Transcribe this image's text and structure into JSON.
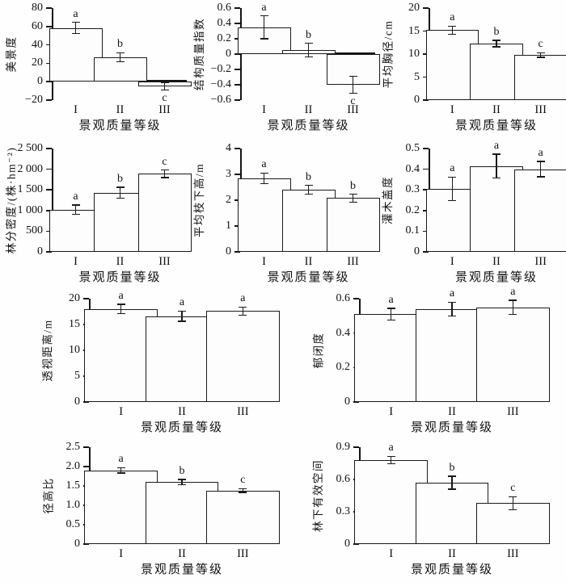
{
  "figure": {
    "background": "#fefefe",
    "axis_color": "#141414",
    "bar_fill": "#fdfdfd",
    "common_xlabel": "景观质量等级",
    "common_categories": [
      "I",
      "II",
      "III"
    ]
  },
  "chart_data": [
    {
      "type": "bar",
      "ylabel": "美景度",
      "xlabel": "景观质量等级",
      "categories": [
        "I",
        "II",
        "III"
      ],
      "values": [
        58.5,
        26.5,
        -5
      ],
      "errors": [
        6,
        5,
        4
      ],
      "sig_letters": [
        "a",
        "b",
        "c"
      ],
      "ylim": [
        -20,
        80
      ],
      "yticks": [
        -20,
        0,
        20,
        40,
        60,
        80
      ],
      "ytick_labels": [
        "−20",
        "0",
        "20",
        "40",
        "60",
        "80"
      ],
      "grid": false
    },
    {
      "type": "bar",
      "ylabel": "结构质量指数",
      "xlabel": "景观质量等级",
      "categories": [
        "I",
        "II",
        "III"
      ],
      "values": [
        0.35,
        0.05,
        -0.4
      ],
      "errors": [
        0.15,
        0.09,
        0.11
      ],
      "sig_letters": [
        "a",
        "b",
        "c"
      ],
      "ylim": [
        -0.6,
        0.6
      ],
      "yticks": [
        -0.6,
        -0.4,
        -0.2,
        0,
        0.2,
        0.4,
        0.6
      ],
      "ytick_labels": [
        "−0.6",
        "−0.4",
        "−0.2",
        "0",
        "0.2",
        "0.4",
        "0.6"
      ],
      "grid": false
    },
    {
      "type": "bar",
      "ylabel": "平均胸径/cm",
      "xlabel": "景观质量等级",
      "categories": [
        "I",
        "II",
        "III"
      ],
      "values": [
        15.2,
        12.3,
        9.8
      ],
      "errors": [
        0.9,
        0.7,
        0.5
      ],
      "sig_letters": [
        "a",
        "b",
        "c"
      ],
      "ylim": [
        0,
        20
      ],
      "yticks": [
        0,
        5,
        10,
        15,
        20
      ],
      "ytick_labels": [
        "0",
        "5",
        "10",
        "15",
        "20"
      ],
      "grid": false
    },
    {
      "type": "bar",
      "ylabel": "林分密度/(株·hm⁻²)",
      "xlabel": "景观质量等级",
      "categories": [
        "I",
        "II",
        "III"
      ],
      "values": [
        1020,
        1430,
        1890
      ],
      "errors": [
        110,
        130,
        90
      ],
      "sig_letters": [
        "a",
        "b",
        "c"
      ],
      "ylim": [
        0,
        2500
      ],
      "yticks": [
        0,
        500,
        1000,
        1500,
        2000,
        2500
      ],
      "ytick_labels": [
        "0",
        "500",
        "1 000",
        "1 500",
        "2 000",
        "2 500"
      ],
      "grid": false
    },
    {
      "type": "bar",
      "ylabel": "平均枝下高/m",
      "xlabel": "景观质量等级",
      "categories": [
        "I",
        "II",
        "III"
      ],
      "values": [
        2.85,
        2.4,
        2.08
      ],
      "errors": [
        0.2,
        0.17,
        0.15
      ],
      "sig_letters": [
        "a",
        "b",
        "b"
      ],
      "ylim": [
        0,
        4
      ],
      "yticks": [
        0,
        1,
        2,
        3,
        4
      ],
      "ytick_labels": [
        "0",
        "1",
        "2",
        "3",
        "4"
      ],
      "grid": false
    },
    {
      "type": "bar",
      "ylabel": "灌木盖度",
      "xlabel": "景观质量等级",
      "categories": [
        "I",
        "II",
        "III"
      ],
      "values": [
        0.305,
        0.415,
        0.4
      ],
      "errors": [
        0.057,
        0.057,
        0.037
      ],
      "sig_letters": [
        "a",
        "a",
        "a"
      ],
      "ylim": [
        0,
        0.5
      ],
      "yticks": [
        0,
        0.1,
        0.2,
        0.3,
        0.4,
        0.5
      ],
      "ytick_labels": [
        "0",
        "0.1",
        "0.2",
        "0.3",
        "0.4",
        "0.5"
      ],
      "grid": false
    },
    {
      "type": "bar",
      "ylabel": "透视距离/m",
      "xlabel": "景观质量等级",
      "categories": [
        "I",
        "II",
        "III"
      ],
      "values": [
        18.0,
        16.6,
        17.6
      ],
      "errors": [
        0.9,
        1.0,
        0.8
      ],
      "sig_letters": [
        "a",
        "a",
        "a"
      ],
      "ylim": [
        0,
        20
      ],
      "yticks": [
        0,
        5,
        10,
        15,
        20
      ],
      "ytick_labels": [
        "0",
        "5",
        "10",
        "15",
        "20"
      ],
      "grid": false
    },
    {
      "type": "bar",
      "ylabel": "郁闭度",
      "xlabel": "景观质量等级",
      "categories": [
        "I",
        "II",
        "III"
      ],
      "values": [
        0.51,
        0.54,
        0.55
      ],
      "errors": [
        0.033,
        0.04,
        0.04
      ],
      "sig_letters": [
        "a",
        "a",
        "a"
      ],
      "ylim": [
        0,
        0.6
      ],
      "yticks": [
        0,
        0.2,
        0.4,
        0.6
      ],
      "ytick_labels": [
        "0",
        "0.2",
        "0.4",
        "0.6"
      ],
      "grid": false
    },
    {
      "type": "bar",
      "ylabel": "径高比",
      "xlabel": "景观质量等级",
      "categories": [
        "I",
        "II",
        "III"
      ],
      "values": [
        1.9,
        1.6,
        1.38
      ],
      "errors": [
        0.07,
        0.07,
        0.05
      ],
      "sig_letters": [
        "a",
        "b",
        "c"
      ],
      "ylim": [
        0,
        2.5
      ],
      "yticks": [
        0,
        0.5,
        1.0,
        1.5,
        2.0,
        2.5
      ],
      "ytick_labels": [
        "0",
        "0.5",
        "1.0",
        "1.5",
        "2.0",
        "2.5"
      ],
      "grid": false
    },
    {
      "type": "bar",
      "ylabel": "林下有效空间",
      "xlabel": "景观质量等级",
      "categories": [
        "I",
        "II",
        "III"
      ],
      "values": [
        0.78,
        0.57,
        0.38
      ],
      "errors": [
        0.035,
        0.06,
        0.06
      ],
      "sig_letters": [
        "a",
        "b",
        "c"
      ],
      "ylim": [
        0,
        0.9
      ],
      "yticks": [
        0,
        0.3,
        0.6,
        0.9
      ],
      "ytick_labels": [
        "0",
        "0.3",
        "0.6",
        "0.9"
      ],
      "grid": false
    }
  ]
}
